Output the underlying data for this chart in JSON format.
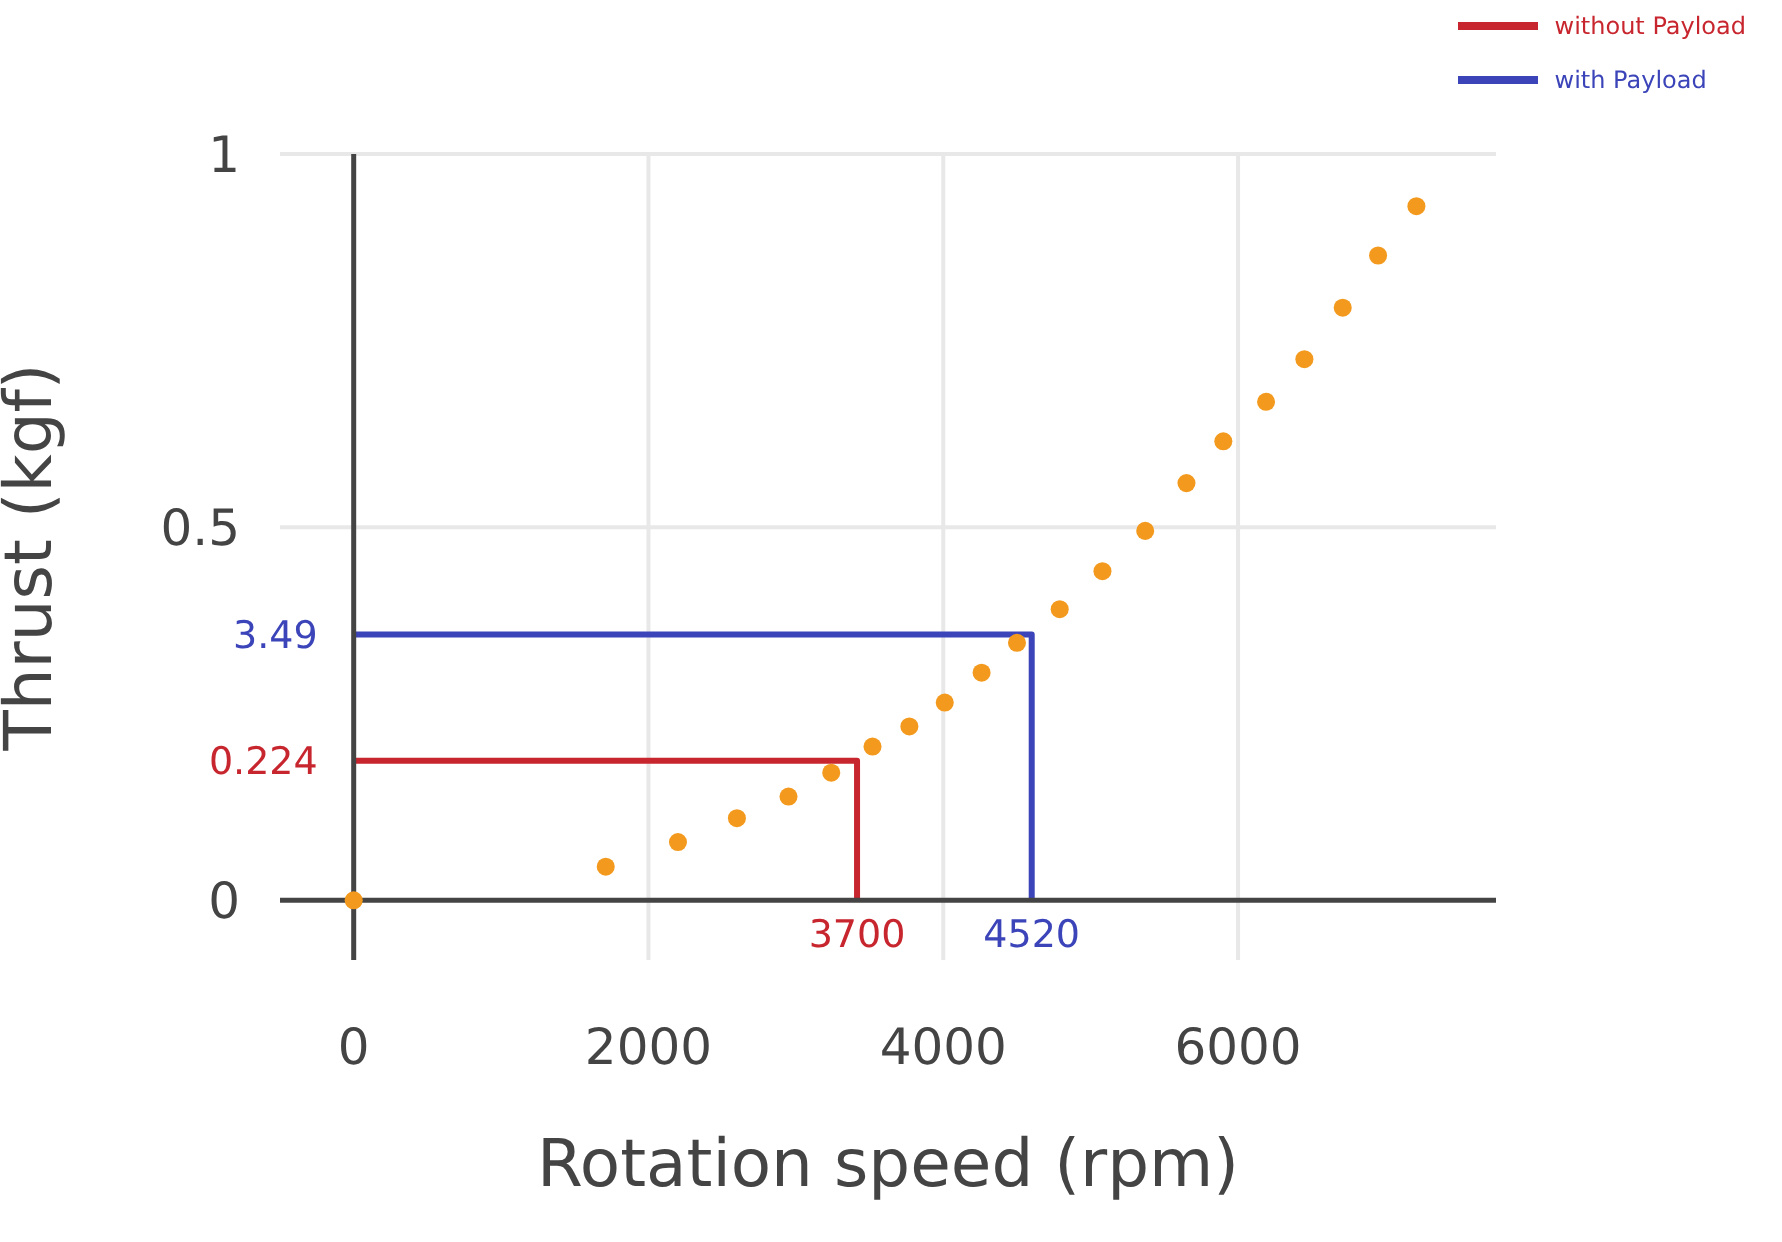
{
  "chart_data": {
    "type": "scatter",
    "xlabel": "Rotation speed (rpm)",
    "ylabel": "Thrust (kgf)",
    "xlim": [
      -500,
      7750
    ],
    "ylim": [
      -0.08,
      1
    ],
    "xticks": [
      0,
      2000,
      4000,
      6000
    ],
    "yticks": [
      0,
      0.5,
      1
    ],
    "grid": true,
    "legend": "top right",
    "marker": "circle",
    "series": [
      {
        "color": "#f39a1e",
        "x": [
          0,
          1710,
          2200,
          2600,
          2950,
          3240,
          3520,
          3770,
          4010,
          4260,
          4500,
          4790,
          5080,
          5370,
          5650,
          5900,
          6190,
          6450,
          6710,
          6950,
          7210
        ],
        "values": [
          0,
          0.045,
          0.078,
          0.11,
          0.139,
          0.171,
          0.206,
          0.233,
          0.265,
          0.305,
          0.345,
          0.39,
          0.441,
          0.495,
          0.559,
          0.615,
          0.668,
          0.725,
          0.794,
          0.864,
          0.93
        ]
      },
      {
        "type": "line",
        "marker": "none",
        "name": "without Payload",
        "color": "#c8262e",
        "x": [
          0,
          3415,
          3415
        ],
        "values": [
          0.187,
          0.187,
          0
        ]
      },
      {
        "type": "line",
        "marker": "none",
        "name": "with Payload",
        "color": "#3b44b8",
        "x": [
          0,
          4600,
          4600
        ],
        "values": [
          0.356,
          0.356,
          0
        ]
      }
    ],
    "annotations": [
      {
        "text": "0.224",
        "x": 0,
        "y": 0.187
      },
      {
        "text": "3700",
        "x": 3415,
        "y": 0
      },
      {
        "text": "3.49",
        "x": 0,
        "y": 0.356
      },
      {
        "text": "4520",
        "x": 4600,
        "y": 0
      }
    ]
  }
}
